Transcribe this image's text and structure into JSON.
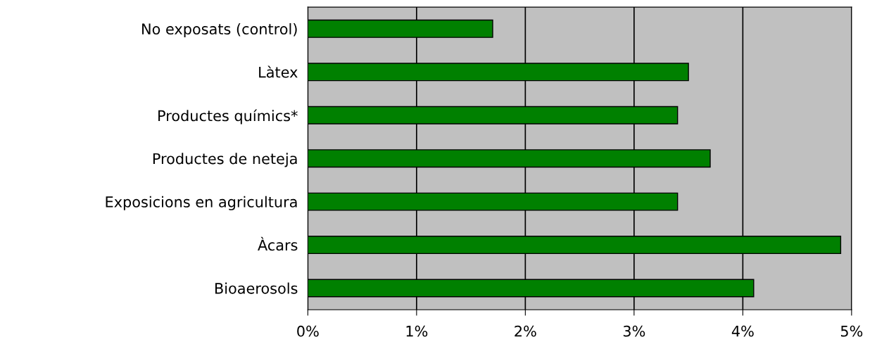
{
  "chart_data": {
    "type": "bar",
    "orientation": "horizontal",
    "categories": [
      "No exposats (control)",
      "Làtex",
      "Productes químics*",
      "Productes de neteja",
      "Exposicions en agricultura",
      "Àcars",
      "Bioaerosols"
    ],
    "values": [
      1.7,
      3.5,
      3.4,
      3.7,
      3.4,
      4.9,
      4.1
    ],
    "color": "#008000",
    "xlim": [
      0,
      5
    ],
    "xticks": [
      {
        "value": 0,
        "label": "0%"
      },
      {
        "value": 1,
        "label": "1%"
      },
      {
        "value": 2,
        "label": "2%"
      },
      {
        "value": 3,
        "label": "3%"
      },
      {
        "value": 4,
        "label": "4%"
      },
      {
        "value": 5,
        "label": "5%"
      }
    ],
    "grid": "x"
  }
}
